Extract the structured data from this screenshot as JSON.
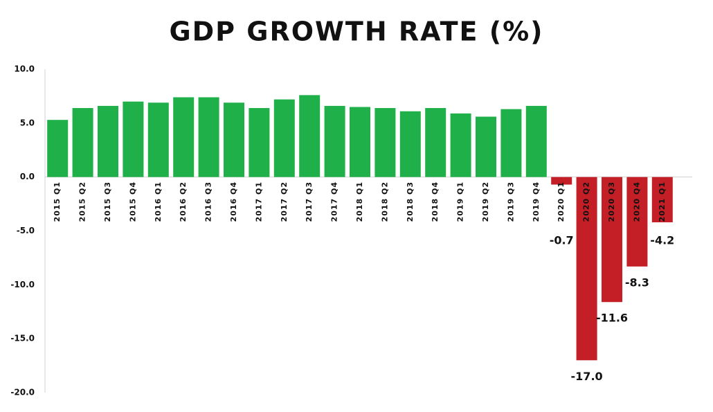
{
  "chart_data": {
    "type": "bar",
    "title": "GDP GROWTH RATE (%)",
    "categories": [
      "2015 Q1",
      "2015 Q2",
      "2015 Q3",
      "2015 Q4",
      "2016 Q1",
      "2016 Q2",
      "2016 Q3",
      "2016 Q4",
      "2017 Q1",
      "2017 Q2",
      "2017 Q3",
      "2017 Q4",
      "2018 Q1",
      "2018 Q2",
      "2018 Q3",
      "2018 Q4",
      "2019 Q1",
      "2019 Q2",
      "2019 Q3",
      "2019 Q4",
      "2020 Q1",
      "2020 Q2",
      "2020 Q3",
      "2020 Q4",
      "2021 Q1"
    ],
    "values": [
      5.3,
      6.4,
      6.6,
      7.0,
      6.9,
      7.4,
      7.4,
      6.9,
      6.4,
      7.2,
      7.6,
      6.6,
      6.5,
      6.4,
      6.1,
      6.4,
      5.9,
      5.6,
      6.3,
      6.6,
      -0.7,
      -17.0,
      -11.6,
      -8.3,
      -4.2
    ],
    "value_labels": [
      null,
      null,
      null,
      null,
      null,
      null,
      null,
      null,
      null,
      null,
      null,
      null,
      null,
      null,
      null,
      null,
      null,
      null,
      null,
      null,
      "-0.7",
      "-17.0",
      "-11.6",
      "-8.3",
      "-4.2"
    ],
    "positive_color": "#1fb04a",
    "negative_color": "#c41f26",
    "ylim": [
      -20,
      10
    ],
    "yticks": [
      {
        "value": -20,
        "label": "-20.0"
      },
      {
        "value": -15,
        "label": "-15.0"
      },
      {
        "value": -10,
        "label": "-10.0"
      },
      {
        "value": -5,
        "label": "-5.0"
      },
      {
        "value": 0,
        "label": "0.0"
      },
      {
        "value": 5,
        "label": "5.0"
      },
      {
        "value": 10,
        "label": "10.0"
      }
    ],
    "grid": false
  }
}
